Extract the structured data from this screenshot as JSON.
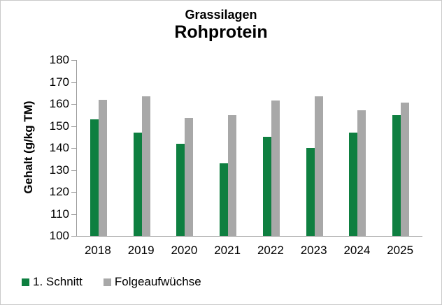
{
  "chart_data": {
    "type": "bar",
    "title_lines": [
      "Grassilagen",
      "Rohprotein"
    ],
    "ylabel": "Gehalt (g/kg TM)",
    "ylim": [
      100,
      180
    ],
    "ytick_step": 10,
    "grid": false,
    "legend_position": "bottom-left",
    "categories": [
      "2018",
      "2019",
      "2020",
      "2021",
      "2022",
      "2023",
      "2024",
      "2025"
    ],
    "series": [
      {
        "name": "1. Schnitt",
        "color": "#0e7f40",
        "values": [
          153,
          147,
          142,
          133,
          145,
          140,
          147,
          155
        ]
      },
      {
        "name": "Folgeaufwüchse",
        "color": "#a8a8a8",
        "values": [
          162,
          163.5,
          153.5,
          155,
          161.5,
          163.5,
          157,
          160.5
        ]
      }
    ]
  },
  "colors": {
    "axis": "#9b9b9b",
    "text": "#000000",
    "background": "#ffffff",
    "border": "#c9c9c9"
  }
}
